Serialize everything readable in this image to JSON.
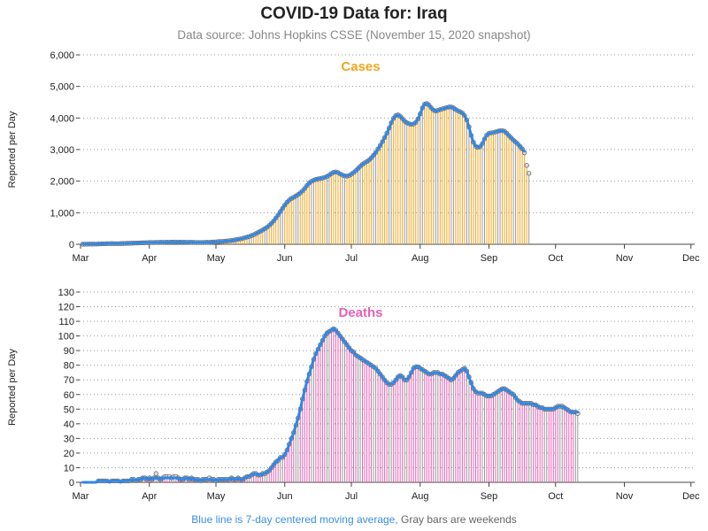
{
  "title": "COVID-19 Data for: Iraq",
  "subtitle": "Data source: Johns Hopkins CSSE (November 15, 2020 snapshot)",
  "footnote": {
    "blue_text": "Blue line is 7-day centered moving average,",
    "gray_text": "Gray bars are weekends"
  },
  "colors": {
    "cases": "#f2a71f",
    "deaths": "#e563b4",
    "moving_average": "#2f87e8",
    "weekend_bar": "#999999",
    "point_fill": "#dddddd",
    "point_stroke": "#555555"
  },
  "chart_data": [
    {
      "type": "bar",
      "title": "Cases",
      "ylabel": "Reported per Day",
      "xlabel": "",
      "ylim": [
        0,
        6000
      ],
      "yticks": [
        "0",
        "1,000",
        "2,000",
        "3,000",
        "4,000",
        "5,000",
        "6,000"
      ],
      "xticks": [
        "Mar",
        "Apr",
        "May",
        "Jun",
        "Jul",
        "Aug",
        "Sep",
        "Oct",
        "Nov",
        "Dec"
      ],
      "grid": "horizontal dotted",
      "x_start_date": "2020-03-01",
      "series": [
        {
          "kind": "bar",
          "values": [
            2,
            4,
            5,
            6,
            5,
            6,
            8,
            12,
            14,
            16,
            18,
            20,
            21,
            23,
            22,
            21,
            22,
            23,
            26,
            29,
            30,
            31,
            33,
            37,
            38,
            41,
            44,
            47,
            48,
            51,
            54,
            56,
            57,
            59,
            60,
            62,
            63,
            64,
            66,
            67,
            68,
            69,
            70,
            70,
            69,
            67,
            65,
            64,
            62,
            61,
            59,
            57,
            56,
            56,
            57,
            59,
            61,
            64,
            68,
            72,
            77,
            82,
            86,
            91,
            97,
            104,
            112,
            121,
            131,
            143,
            157,
            172,
            189,
            207,
            227,
            249,
            275,
            305,
            338,
            374,
            412,
            451,
            493,
            540,
            596,
            662,
            740,
            830,
            930,
            1035,
            1140,
            1240,
            1330,
            1400,
            1450,
            1490,
            1530,
            1575,
            1625,
            1690,
            1770,
            1860,
            1940,
            1995,
            2030,
            2055,
            2070,
            2085,
            2100,
            2120,
            2150,
            2190,
            2240,
            2280,
            2290,
            2270,
            2230,
            2190,
            2165,
            2160,
            2180,
            2220,
            2270,
            2330,
            2400,
            2470,
            2530,
            2580,
            2620,
            2670,
            2740,
            2820,
            2910,
            3020,
            3130,
            3250,
            3380,
            3520,
            3680,
            3850,
            3990,
            4080,
            4100,
            4060,
            3980,
            3900,
            3850,
            3820,
            3800,
            3810,
            3860,
            3970,
            4130,
            4320,
            4440,
            4460,
            4410,
            4320,
            4250,
            4220,
            4240,
            4270,
            4290,
            4310,
            4330,
            4350,
            4350,
            4320,
            4270,
            4230,
            4200,
            4160,
            4080,
            3940,
            3720,
            3450,
            3230,
            3110,
            3070,
            3090,
            3190,
            3340,
            3460,
            3520,
            3530,
            3540,
            3560,
            3580,
            3600,
            3600,
            3580,
            3520,
            3440,
            3370,
            3300,
            3240,
            3180,
            3100,
            3020,
            2900,
            2500,
            2250
          ]
        },
        {
          "kind": "moving_average",
          "values": [
            5,
            5,
            5,
            6,
            6,
            7,
            8,
            10,
            12,
            14,
            16,
            18,
            20,
            21,
            22,
            22,
            22,
            23,
            25,
            27,
            29,
            31,
            33,
            36,
            38,
            41,
            44,
            47,
            49,
            51,
            54,
            56,
            57,
            59,
            60,
            62,
            63,
            64,
            65,
            66,
            67,
            68,
            68,
            69,
            68,
            67,
            65,
            64,
            62,
            61,
            59,
            57,
            57,
            56,
            57,
            59,
            61,
            64,
            68,
            72,
            77,
            82,
            86,
            91,
            97,
            104,
            112,
            121,
            131,
            143,
            157,
            172,
            189,
            207,
            227,
            249,
            275,
            305,
            338,
            374,
            412,
            451,
            493,
            540,
            596,
            662,
            740,
            830,
            930,
            1035,
            1140,
            1240,
            1330,
            1400,
            1450,
            1490,
            1530,
            1575,
            1625,
            1690,
            1770,
            1860,
            1940,
            1995,
            2030,
            2055,
            2070,
            2085,
            2100,
            2120,
            2150,
            2190,
            2240,
            2280,
            2290,
            2270,
            2230,
            2190,
            2165,
            2160,
            2180,
            2220,
            2270,
            2330,
            2400,
            2470,
            2530,
            2580,
            2620,
            2670,
            2740,
            2820,
            2910,
            3020,
            3130,
            3250,
            3380,
            3520,
            3680,
            3850,
            3990,
            4080,
            4100,
            4060,
            3980,
            3900,
            3850,
            3820,
            3800,
            3810,
            3860,
            3970,
            4130,
            4320,
            4440,
            4460,
            4410,
            4320,
            4250,
            4220,
            4240,
            4270,
            4290,
            4310,
            4330,
            4350,
            4350,
            4320,
            4270,
            4230,
            4200,
            4160,
            4080,
            3940,
            3720,
            3450,
            3230,
            3110,
            3070,
            3090,
            3190,
            3340,
            3460,
            3520,
            3530,
            3540,
            3560,
            3580,
            3600,
            3600,
            3580,
            3520,
            3440,
            3370,
            3300,
            3240,
            3180,
            3100,
            3020,
            2950
          ]
        }
      ]
    },
    {
      "type": "bar",
      "title": "Deaths",
      "ylabel": "Reported per Day",
      "xlabel": "",
      "ylim": [
        0,
        130
      ],
      "yticks": [
        "0",
        "10",
        "20",
        "30",
        "40",
        "50",
        "60",
        "70",
        "80",
        "90",
        "100",
        "110",
        "120",
        "130"
      ],
      "xticks": [
        "Mar",
        "Apr",
        "May",
        "Jun",
        "Jul",
        "Aug",
        "Sep",
        "Oct",
        "Nov",
        "Dec"
      ],
      "grid": "horizontal dotted",
      "x_start_date": "2020-03-01",
      "series": [
        {
          "kind": "bar",
          "values": [
            0,
            0,
            0,
            0,
            0,
            0,
            0,
            1,
            1,
            1,
            1,
            1,
            0,
            1,
            1,
            1,
            1,
            0,
            1,
            1,
            1,
            1,
            2,
            2,
            1,
            2,
            2,
            3,
            3,
            2,
            3,
            2,
            3,
            6,
            3,
            2,
            3,
            4,
            4,
            4,
            3,
            4,
            4,
            3,
            2,
            2,
            3,
            3,
            2,
            3,
            2,
            2,
            2,
            1,
            2,
            2,
            2,
            3,
            2,
            2,
            1,
            2,
            2,
            2,
            2,
            2,
            2,
            3,
            2,
            2,
            3,
            2,
            2,
            3,
            4,
            4,
            5,
            6,
            6,
            5,
            5,
            6,
            6,
            7,
            8,
            10,
            12,
            14,
            15,
            17,
            17,
            19,
            22,
            26,
            30,
            34,
            39,
            44,
            50,
            57,
            63,
            69,
            74,
            79,
            84,
            88,
            91,
            94,
            97,
            100,
            102,
            103,
            104,
            105,
            104,
            102,
            100,
            98,
            96,
            94,
            92,
            90,
            89,
            87,
            86,
            85,
            84,
            83,
            82,
            81,
            80,
            79,
            78,
            76,
            74,
            72,
            70,
            68,
            67,
            67,
            68,
            70,
            72,
            73,
            72,
            70,
            70,
            72,
            75,
            78,
            79,
            79,
            78,
            77,
            76,
            75,
            74,
            74,
            75,
            75,
            75,
            74,
            74,
            73,
            72,
            71,
            70,
            71,
            73,
            75,
            76,
            77,
            78,
            76,
            72,
            68,
            64,
            62,
            61,
            61,
            61,
            60,
            59,
            59,
            59,
            60,
            61,
            62,
            63,
            64,
            64,
            63,
            62,
            61,
            60,
            58,
            56,
            55,
            54,
            54,
            54,
            54,
            54,
            53,
            53,
            52,
            51,
            51,
            50,
            50,
            50,
            50,
            50,
            51,
            52,
            52,
            52,
            51,
            50,
            49,
            48,
            48,
            48,
            47
          ]
        },
        {
          "kind": "moving_average",
          "values": [
            0,
            0,
            0,
            0,
            0,
            0,
            0,
            1,
            1,
            1,
            1,
            1,
            0,
            1,
            1,
            1,
            1,
            0,
            1,
            1,
            1,
            1,
            2,
            2,
            1,
            2,
            2,
            3,
            3,
            2,
            3,
            2,
            3,
            3,
            3,
            2,
            3,
            3,
            3,
            3,
            3,
            3,
            3,
            3,
            2,
            2,
            3,
            3,
            2,
            3,
            2,
            2,
            2,
            1,
            2,
            2,
            2,
            2,
            2,
            2,
            1,
            2,
            2,
            2,
            2,
            2,
            2,
            3,
            2,
            2,
            3,
            2,
            2,
            3,
            4,
            4,
            5,
            6,
            6,
            5,
            5,
            6,
            6,
            7,
            8,
            10,
            12,
            14,
            15,
            17,
            17,
            19,
            22,
            26,
            30,
            34,
            39,
            44,
            50,
            57,
            63,
            69,
            74,
            79,
            84,
            88,
            91,
            94,
            97,
            100,
            102,
            103,
            104,
            105,
            104,
            102,
            100,
            98,
            96,
            94,
            92,
            90,
            89,
            87,
            86,
            85,
            84,
            83,
            82,
            81,
            80,
            79,
            78,
            76,
            74,
            72,
            70,
            68,
            67,
            67,
            68,
            70,
            72,
            73,
            72,
            70,
            70,
            72,
            75,
            78,
            79,
            79,
            78,
            77,
            76,
            75,
            74,
            74,
            75,
            75,
            75,
            74,
            74,
            73,
            72,
            71,
            70,
            71,
            73,
            75,
            76,
            77,
            78,
            76,
            72,
            68,
            64,
            62,
            61,
            61,
            61,
            60,
            59,
            59,
            59,
            60,
            61,
            62,
            63,
            64,
            64,
            63,
            62,
            61,
            60,
            58,
            56,
            55,
            54,
            54,
            54,
            54,
            54,
            53,
            53,
            52,
            51,
            51,
            50,
            50,
            50,
            50,
            50,
            51,
            52,
            52,
            52,
            51,
            50,
            49,
            48,
            48,
            48,
            48
          ]
        }
      ]
    }
  ]
}
